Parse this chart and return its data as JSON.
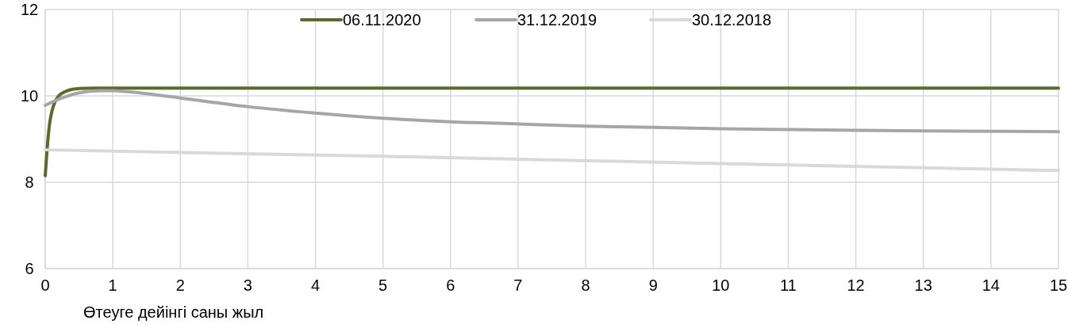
{
  "chart_data": {
    "type": "line",
    "xlabel": "Өтеуге дейінгі саны жыл",
    "xlim": [
      0,
      15
    ],
    "xticks": [
      0,
      1,
      2,
      3,
      4,
      5,
      6,
      7,
      8,
      9,
      10,
      11,
      12,
      13,
      14,
      15
    ],
    "ylim": [
      6,
      12
    ],
    "yticks": [
      6,
      8,
      10,
      12
    ],
    "grid": true,
    "legend": "top",
    "line_style": "solid",
    "marker": "none",
    "series": [
      {
        "name": "06.11.2020",
        "color": "#586c2c",
        "x": [
          0,
          0.03,
          0.06,
          0.1,
          0.15,
          0.2,
          0.3,
          0.4,
          0.5,
          0.7,
          1,
          15
        ],
        "values": [
          8.15,
          8.8,
          9.3,
          9.65,
          9.88,
          10.0,
          10.1,
          10.15,
          10.17,
          10.18,
          10.18,
          10.18
        ]
      },
      {
        "name": "31.12.2019",
        "color": "#a6a6a6",
        "x": [
          0,
          0.25,
          0.5,
          0.8,
          1,
          1.5,
          2,
          3,
          4,
          5,
          6,
          7,
          8,
          9,
          10,
          11,
          12,
          13,
          14,
          15
        ],
        "values": [
          9.78,
          9.95,
          10.07,
          10.12,
          10.12,
          10.05,
          9.95,
          9.75,
          9.6,
          9.48,
          9.4,
          9.35,
          9.3,
          9.27,
          9.24,
          9.22,
          9.2,
          9.19,
          9.18,
          9.17
        ]
      },
      {
        "name": "30.12.2018",
        "color": "#d9d9d9",
        "x": [
          0,
          5,
          10,
          15
        ],
        "values": [
          8.75,
          8.6,
          8.43,
          8.27
        ]
      }
    ]
  }
}
